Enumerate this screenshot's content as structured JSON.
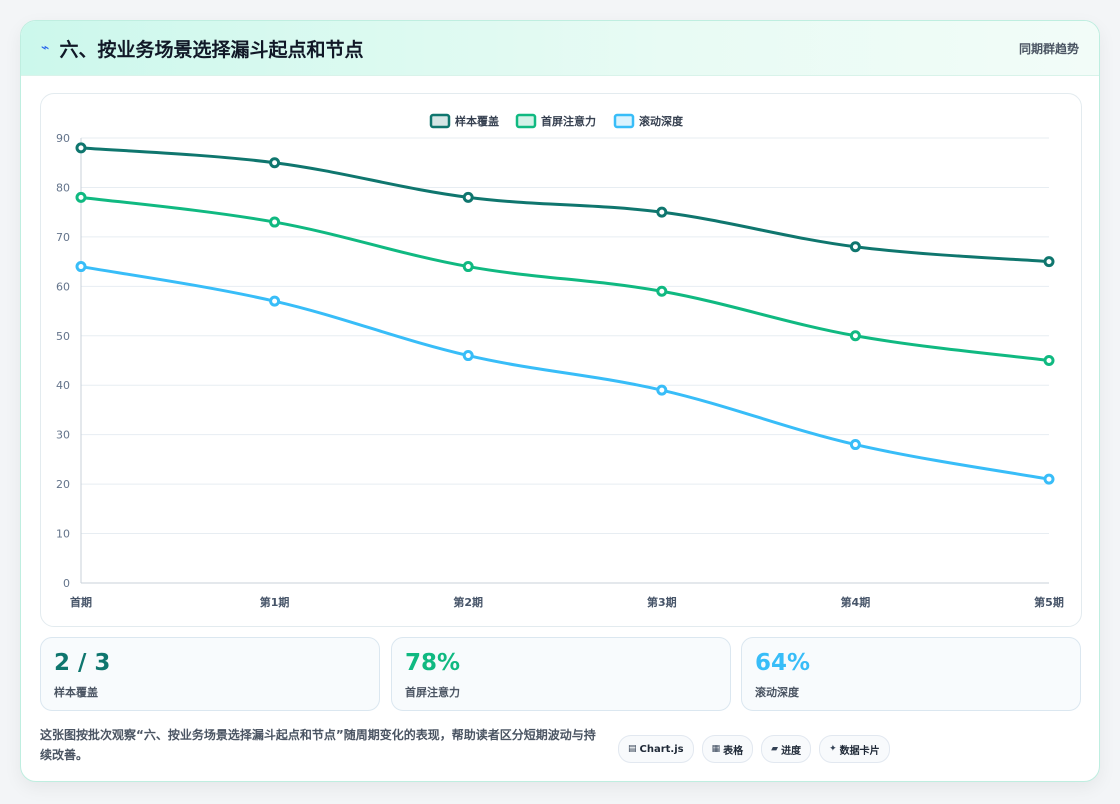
{
  "header": {
    "icon": "flash-icon",
    "title": "六、按业务场景选择漏斗起点和节点",
    "right_label": "同期群趋势"
  },
  "chart_data": {
    "type": "line",
    "categories": [
      "首期",
      "第1期",
      "第2期",
      "第3期",
      "第4期",
      "第5期"
    ],
    "ylim": [
      0,
      90
    ],
    "yticks": [
      0,
      10,
      20,
      30,
      40,
      50,
      60,
      70,
      80,
      90
    ],
    "grid": true,
    "legend_position": "top",
    "series": [
      {
        "name": "样本覆盖",
        "color": "#0f766e",
        "values": [
          88,
          85,
          78,
          75,
          68,
          65
        ]
      },
      {
        "name": "首屏注意力",
        "color": "#10b981",
        "values": [
          78,
          73,
          64,
          59,
          50,
          45
        ]
      },
      {
        "name": "滚动深度",
        "color": "#38bdf8",
        "values": [
          64,
          57,
          46,
          39,
          28,
          21
        ]
      }
    ]
  },
  "stats": [
    {
      "value": "2 / 3",
      "label": "样本覆盖",
      "color": "#0f766e"
    },
    {
      "value": "78%",
      "label": "首屏注意力",
      "color": "#10b981"
    },
    {
      "value": "64%",
      "label": "滚动深度",
      "color": "#38bdf8"
    }
  ],
  "footer": {
    "description": "这张图按批次观察“六、按业务场景选择漏斗起点和节点”随周期变化的表现，帮助读者区分短期波动与持续改善。",
    "chips": [
      {
        "icon": "chart-icon",
        "glyph": "▤",
        "label": "Chart.js"
      },
      {
        "icon": "table-icon",
        "glyph": "▦",
        "label": "表格"
      },
      {
        "icon": "progress-icon",
        "glyph": "▰",
        "label": "进度"
      },
      {
        "icon": "card-icon",
        "glyph": "✦",
        "label": "数据卡片"
      }
    ]
  }
}
